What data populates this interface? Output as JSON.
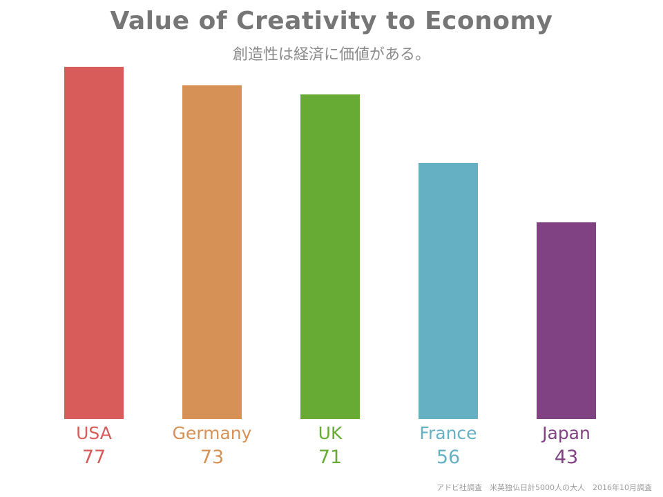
{
  "header": {
    "title": "Value of Creativity to Economy",
    "subtitle": "創造性は経済に価値がある。"
  },
  "footnote": "アドビ社調査　米英独仏日計5000人の大人　2016年10月調査",
  "chart_data": {
    "type": "bar",
    "title": "Value of Creativity to Economy",
    "subtitle": "創造性は経済に価値がある。",
    "categories": [
      "USA",
      "Germany",
      "UK",
      "France",
      "Japan"
    ],
    "values": [
      77,
      73,
      71,
      56,
      43
    ],
    "colors": [
      "#d75c5a",
      "#d69256",
      "#67ab34",
      "#65b1c3",
      "#814284"
    ],
    "ylim": [
      0,
      80
    ],
    "grid": false,
    "legend": "none",
    "data_labels": true
  }
}
